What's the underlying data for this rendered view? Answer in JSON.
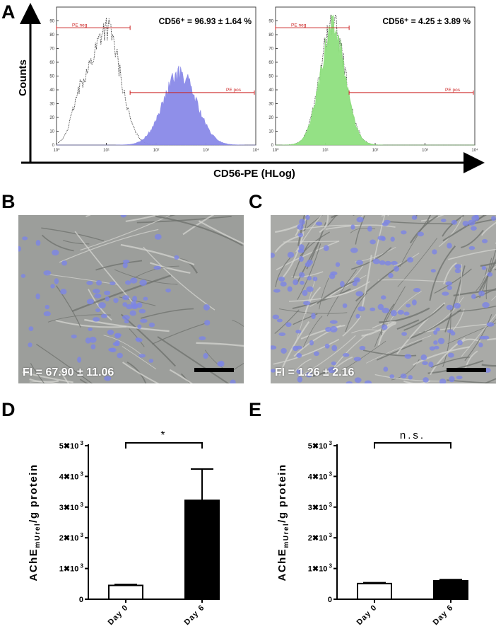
{
  "panels": {
    "a": "A",
    "b": "B",
    "c": "C",
    "d": "D",
    "e": "E"
  },
  "panel_a": {
    "ylabel": "Counts",
    "xlabel": "CD56-PE (HLog)",
    "colors": {
      "frame": "#000000",
      "gate": "#cc2222",
      "pos_fill": "#8a8ae8",
      "neg_fill": "#8fe07f",
      "control_line": "#333333"
    }
  },
  "panel_b": {
    "fi_text": "FI = 67.90 ± 11.06"
  },
  "panel_c": {
    "fi_text": "FI = 1.26 ± 2.16"
  },
  "chart_data": [
    {
      "type": "area",
      "panel": "A-left",
      "annotation": "CD56⁺ = 96.93 ± 1.64 %",
      "x_scale": "log",
      "xlim": [
        1,
        10000
      ],
      "ylim": [
        0,
        100
      ],
      "x_ticks": [
        "10⁰",
        "10¹",
        "10²",
        "10³",
        "10⁴"
      ],
      "y_ticks": [
        "0",
        "10",
        "20",
        "30",
        "40",
        "50",
        "60",
        "70",
        "80",
        "90"
      ],
      "gates": [
        {
          "label": "PE neg",
          "range": [
            1,
            30
          ],
          "y": 85
        },
        {
          "label": "PE pos",
          "range": [
            30,
            10000
          ],
          "y": 38
        }
      ],
      "series": [
        {
          "style": "dotted-outline",
          "peak_x": 10,
          "peak_y": 85,
          "log_width": 0.28,
          "shoulder_x": 3,
          "shoulder_y": 28
        },
        {
          "style": "filled",
          "color": "#8a8ae8",
          "peak_x": 300,
          "peak_y": 52,
          "log_width": 0.33
        }
      ]
    },
    {
      "type": "area",
      "panel": "A-right",
      "annotation": "CD56⁺ = 4.25 ± 3.89 %",
      "x_scale": "log",
      "xlim": [
        1,
        10000
      ],
      "ylim": [
        0,
        100
      ],
      "x_ticks": [
        "10⁰",
        "10¹",
        "10²",
        "10³",
        "10⁴"
      ],
      "y_ticks": [
        "0",
        "10",
        "20",
        "30",
        "40",
        "50",
        "60",
        "70",
        "80",
        "90"
      ],
      "gates": [
        {
          "label": "PE neg",
          "range": [
            1,
            30
          ],
          "y": 85
        },
        {
          "label": "PE pos",
          "range": [
            30,
            10000
          ],
          "y": 38
        }
      ],
      "series": [
        {
          "style": "dotted-outline",
          "peak_x": 14,
          "peak_y": 87,
          "log_width": 0.25
        },
        {
          "style": "filled",
          "color": "#8fe07f",
          "peak_x": 14,
          "peak_y": 85,
          "log_width": 0.25
        }
      ]
    },
    {
      "type": "bar",
      "panel": "D",
      "ylabel_main": "AChE",
      "ylabel_sub": "mUrel",
      "ylabel_rest": "/g protein",
      "categories": [
        "Day 0",
        "Day 6"
      ],
      "values": [
        450,
        3220
      ],
      "errors": [
        30,
        1020
      ],
      "bar_fills": [
        "#ffffff",
        "#000000"
      ],
      "ylim": [
        0,
        5000
      ],
      "y_ticks": [
        {
          "value": 0,
          "label": "0"
        },
        {
          "value": 1000,
          "label": "1✖10",
          "exp": "3"
        },
        {
          "value": 2000,
          "label": "2✖10",
          "exp": "3"
        },
        {
          "value": 3000,
          "label": "3✖10",
          "exp": "3"
        },
        {
          "value": 4000,
          "label": "4✖10",
          "exp": "3"
        },
        {
          "value": 5000,
          "label": "5✖10",
          "exp": "3"
        }
      ],
      "significance": "*"
    },
    {
      "type": "bar",
      "panel": "E",
      "ylabel_main": "AChE",
      "ylabel_sub": "mUrel",
      "ylabel_rest": "/g protein",
      "categories": [
        "Day 0",
        "Day 6"
      ],
      "values": [
        510,
        600
      ],
      "errors": [
        30,
        40
      ],
      "bar_fills": [
        "#ffffff",
        "#000000"
      ],
      "ylim": [
        0,
        5000
      ],
      "y_ticks": [
        {
          "value": 0,
          "label": "0"
        },
        {
          "value": 1000,
          "label": "1✖10",
          "exp": "3"
        },
        {
          "value": 2000,
          "label": "2✖10",
          "exp": "3"
        },
        {
          "value": 3000,
          "label": "3✖10",
          "exp": "3"
        },
        {
          "value": 4000,
          "label": "4✖10",
          "exp": "3"
        },
        {
          "value": 5000,
          "label": "5✖10",
          "exp": "3"
        }
      ],
      "significance": "n.s."
    }
  ]
}
